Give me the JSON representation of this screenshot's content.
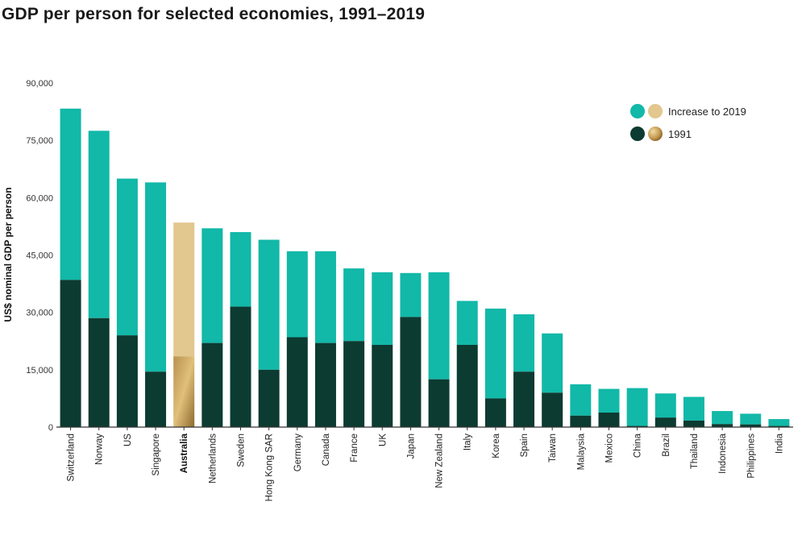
{
  "title": "GDP per person for selected economies, 1991–2019",
  "chart_data": {
    "type": "bar",
    "stacked": true,
    "title": "GDP per person for selected economies, 1991–2019",
    "xlabel": "",
    "ylabel": "US$ nominal GDP per person",
    "ylim": [
      0,
      90000
    ],
    "yticks": [
      0,
      15000,
      30000,
      45000,
      60000,
      75000,
      90000
    ],
    "ytick_labels": [
      "0",
      "15,000",
      "30,000",
      "45,000",
      "60,000",
      "75,000",
      "90,000"
    ],
    "highlight": "Australia",
    "categories": [
      "Switzerland",
      "Norway",
      "US",
      "Singapore",
      "Australia",
      "Netherlands",
      "Sweden",
      "Hong Kong SAR",
      "Germany",
      "Canada",
      "France",
      "UK",
      "Japan",
      "New Zealand",
      "Italy",
      "Korea",
      "Spain",
      "Taiwan",
      "Malaysia",
      "Mexico",
      "China",
      "Brazil",
      "Thailand",
      "Indonesia",
      "Philippines",
      "India"
    ],
    "series": [
      {
        "name": "1991",
        "values": [
          38500,
          28500,
          24000,
          14500,
          18500,
          22000,
          31500,
          15000,
          23500,
          22000,
          22500,
          21500,
          28800,
          12500,
          21500,
          7500,
          14500,
          9000,
          3000,
          3800,
          300,
          2500,
          1700,
          800,
          700,
          300
        ]
      },
      {
        "name": "Increase to 2019",
        "values": [
          44800,
          49000,
          41000,
          49500,
          35000,
          30000,
          19500,
          34000,
          22500,
          24000,
          19000,
          19000,
          11500,
          28000,
          11500,
          23500,
          15000,
          15500,
          8200,
          6200,
          9900,
          6300,
          6200,
          3400,
          2800,
          1800
        ]
      }
    ],
    "totals_2019": [
      83300,
      77500,
      65000,
      64000,
      53500,
      52000,
      51000,
      49000,
      46000,
      46000,
      41500,
      40500,
      40300,
      40500,
      33000,
      31000,
      29500,
      24500,
      11200,
      10000,
      10200,
      8800,
      7900,
      4200,
      3500,
      2100
    ]
  },
  "legend": {
    "increase_label": "Increase to 2019",
    "base_label": "1991"
  },
  "colors": {
    "teal": "#12b8a8",
    "dark_green": "#0c3b31",
    "gold_light": "#e2c78e",
    "gold_dark": "#b08a45",
    "axis": "#333333"
  }
}
